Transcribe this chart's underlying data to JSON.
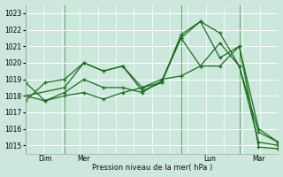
{
  "bg_color": "#cce8dc",
  "grid_color": "#ffffff",
  "line_color": "#1a6e1a",
  "xlabel": "Pression niveau de la mer( hPa )",
  "ylim": [
    1014.5,
    1023.5
  ],
  "yticks": [
    1015,
    1016,
    1017,
    1018,
    1019,
    1020,
    1021,
    1022,
    1023
  ],
  "xtick_labels": [
    "Dim",
    "Mer",
    "Lun",
    "Mar"
  ],
  "series": [
    {
      "x": [
        0,
        1,
        2,
        3,
        4,
        5,
        6,
        7,
        8,
        9,
        10,
        11,
        12,
        13
      ],
      "y": [
        1017.7,
        1018.8,
        1019.0,
        1020.0,
        1019.5,
        1019.8,
        1018.3,
        1018.8,
        1021.7,
        1022.5,
        1021.8,
        1019.8,
        1015.2,
        1015.0
      ]
    },
    {
      "x": [
        0,
        1,
        2,
        3,
        4,
        5,
        6,
        7,
        8,
        9,
        10,
        11,
        12,
        13
      ],
      "y": [
        1018.8,
        1017.7,
        1018.2,
        1019.0,
        1018.5,
        1018.5,
        1018.2,
        1018.9,
        1021.5,
        1022.5,
        1020.3,
        1021.0,
        1014.9,
        1014.8
      ]
    },
    {
      "x": [
        0,
        2,
        3,
        4,
        5,
        6,
        7,
        8,
        9,
        10,
        11,
        12,
        13
      ],
      "y": [
        1018.0,
        1018.5,
        1020.0,
        1019.5,
        1019.8,
        1018.5,
        1018.8,
        1021.5,
        1019.8,
        1021.2,
        1019.8,
        1015.8,
        1015.2
      ]
    },
    {
      "x": [
        0,
        1,
        2,
        3,
        4,
        5,
        6,
        7,
        8,
        9,
        10,
        11,
        12,
        13
      ],
      "y": [
        1018.0,
        1017.7,
        1018.0,
        1018.2,
        1017.8,
        1018.2,
        1018.5,
        1019.0,
        1019.2,
        1019.8,
        1019.8,
        1021.0,
        1016.0,
        1015.2
      ]
    }
  ],
  "xlim": [
    0,
    13
  ]
}
